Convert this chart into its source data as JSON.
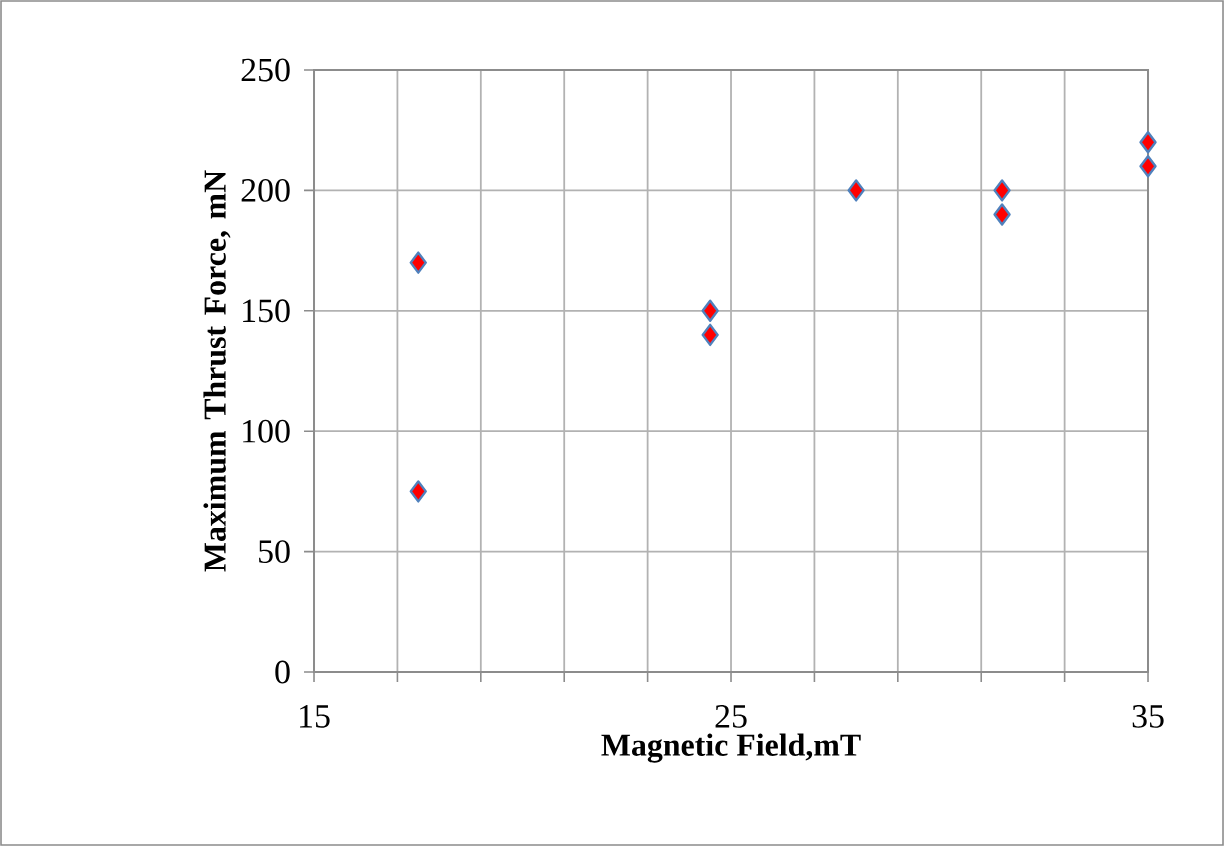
{
  "chart_data": {
    "type": "scatter",
    "xlabel": "Magnetic Field,mT",
    "ylabel": "Maximum Thrust Force, mN",
    "x": [
      17.5,
      17.5,
      24.5,
      24.5,
      28,
      31.5,
      31.5,
      35,
      35
    ],
    "series": [
      {
        "color": "#ff0000",
        "values": [
          170,
          75,
          150,
          140,
          200,
          200,
          190,
          220,
          210
        ]
      }
    ],
    "xlim": [
      15,
      35
    ],
    "ylim": [
      0,
      250
    ],
    "xticks": [
      15,
      {
        "value": 17,
        "label": null
      },
      {
        "value": 19,
        "label": null
      },
      {
        "value": 21,
        "label": null
      },
      {
        "value": 23,
        "label": null
      },
      25,
      {
        "value": 27,
        "label": null
      },
      {
        "value": 29,
        "label": null
      },
      {
        "value": 31,
        "label": null
      },
      {
        "value": 33,
        "label": null
      },
      35
    ],
    "yticks": [
      0,
      50,
      100,
      150,
      200,
      250
    ],
    "grid": true,
    "marker": "diamond"
  }
}
